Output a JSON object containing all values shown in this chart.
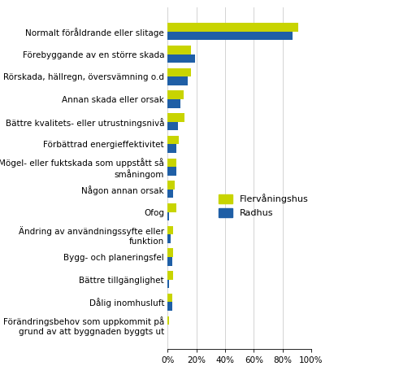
{
  "categories": [
    "Normalt föråldrande eller slitage",
    "Förebyggande av en större skada",
    "Rörskada, hällregn, översvämning o.d",
    "Annan skada eller orsak",
    "Bättre kvalitets- eller utrustningsnivå",
    "Förbättrad energieffektivitet",
    "Mögel- eller fuktskada som uppstått så\nsmåningom",
    "Någon annan orsak",
    "Ofog",
    "Ändring av användningssyfte eller\nfunktion",
    "Bygg- och planeringsfel",
    "Bättre tillgänglighet",
    "Dålig inomhusluft",
    "Förändringsbehov som uppkommit på\ngrund av att byggnaden byggts ut"
  ],
  "flervåningshus": [
    91,
    16,
    16,
    11,
    12,
    8,
    6,
    5,
    6,
    4,
    4,
    4,
    3,
    1
  ],
  "radhus": [
    87,
    19,
    14,
    9,
    7,
    6,
    6,
    4,
    1,
    2,
    3,
    1,
    3,
    0
  ],
  "color_flervåningshus": "#c8d400",
  "color_radhus": "#1f5fa6",
  "legend_flervåningshus": "Flervåningshus",
  "legend_radhus": "Radhus",
  "xlim": [
    0,
    100
  ],
  "xtick_labels": [
    "0%",
    "20%",
    "40%",
    "60%",
    "80%",
    "100%"
  ],
  "xtick_values": [
    0,
    20,
    40,
    60,
    80,
    100
  ],
  "background_color": "#ffffff",
  "font_size": 7.5,
  "bar_height": 0.38
}
